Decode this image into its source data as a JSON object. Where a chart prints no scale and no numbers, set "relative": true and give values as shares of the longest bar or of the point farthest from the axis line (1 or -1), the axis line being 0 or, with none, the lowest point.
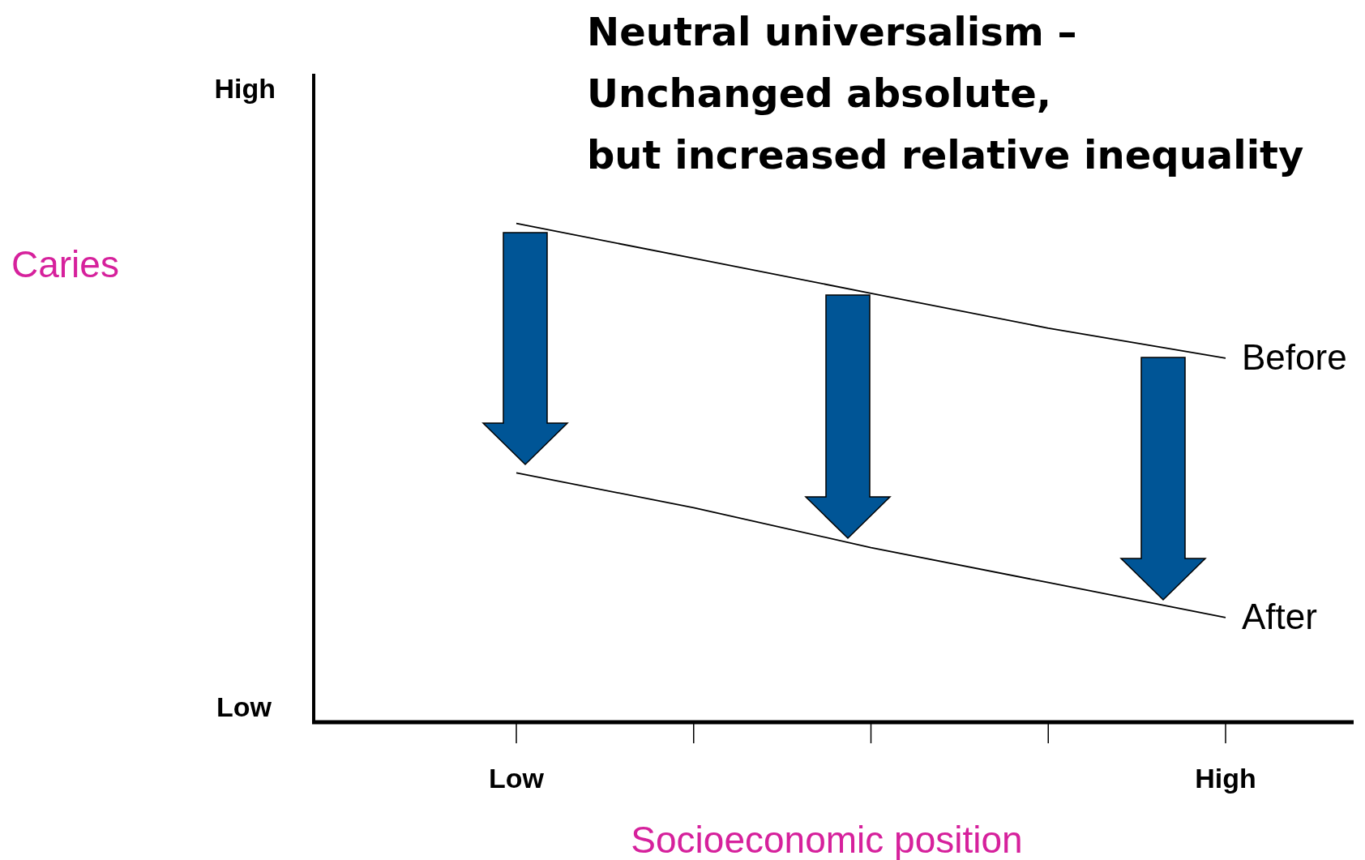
{
  "chart_data": {
    "type": "line",
    "relative": true,
    "title": "Neutral universalism –\nUnchanged absolute,\nbut increased relative inequality",
    "xlabel": "Socioeconomic position",
    "categories": [
      "Low",
      null,
      null,
      null,
      "High"
    ],
    "series": [
      {
        "name": "Before",
        "color": "#000000",
        "values": [
          1,
          0.93,
          0.86,
          0.79,
          0.73
        ]
      },
      {
        "name": "After",
        "color": "#000000",
        "values": [
          0.5,
          0.43,
          0.35,
          0.28,
          0.21
        ]
      }
    ],
    "annotations": [
      "High",
      "Low",
      "Caries"
    ],
    "grid": false,
    "marker": "none",
    "line_style": "solid"
  }
}
